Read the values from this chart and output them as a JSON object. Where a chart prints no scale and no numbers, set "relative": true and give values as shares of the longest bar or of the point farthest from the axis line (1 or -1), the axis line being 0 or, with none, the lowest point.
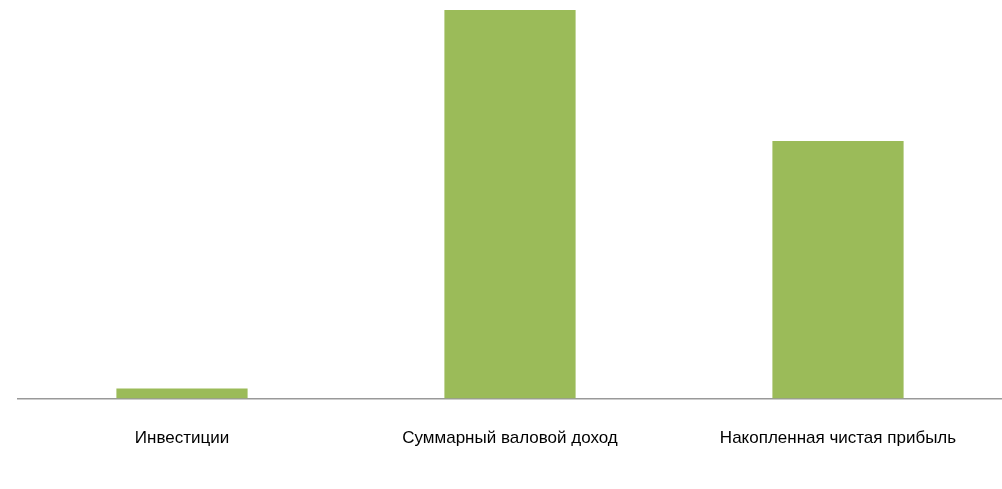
{
  "chart_data": {
    "type": "bar",
    "relative": true,
    "categories": [
      "Инвестиции",
      "Суммарный валовой доход",
      "Накопленная чистая прибыль"
    ],
    "values": [
      0.026,
      1,
      0.663
    ],
    "color": "#9bbb59",
    "grid": false,
    "legend": false
  }
}
